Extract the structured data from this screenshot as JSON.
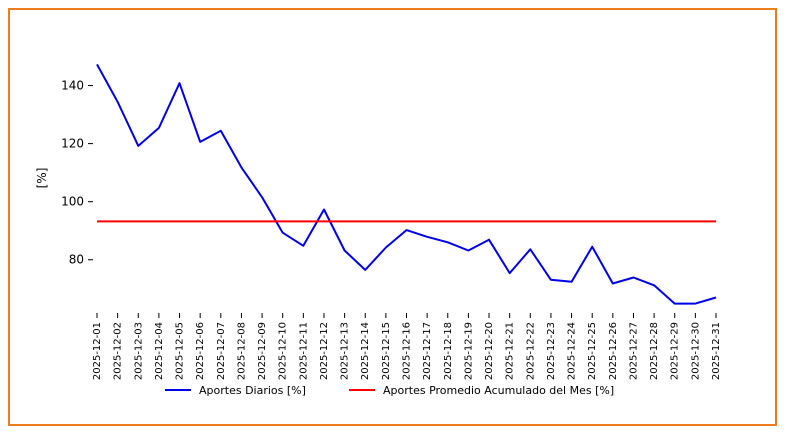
{
  "chart_data": {
    "type": "line",
    "title": "",
    "xlabel": "",
    "ylabel": "[%]",
    "ylim": [
      62,
      155
    ],
    "yticks": [
      80,
      100,
      120,
      140
    ],
    "grid": false,
    "legend_position": "bottom-center",
    "x": [
      "2025-12-01",
      "2025-12-02",
      "2025-12-03",
      "2025-12-04",
      "2025-12-05",
      "2025-12-06",
      "2025-12-07",
      "2025-12-08",
      "2025-12-09",
      "2025-12-10",
      "2025-12-11",
      "2025-12-12",
      "2025-12-13",
      "2025-12-14",
      "2025-12-15",
      "2025-12-16",
      "2025-12-17",
      "2025-12-18",
      "2025-12-19",
      "2025-12-20",
      "2025-12-21",
      "2025-12-22",
      "2025-12-23",
      "2025-12-24",
      "2025-12-25",
      "2025-12-26",
      "2025-12-27",
      "2025-12-28",
      "2025-12-29",
      "2025-12-30",
      "2025-12-31"
    ],
    "series": [
      {
        "name": "Aportes Diarios [%]",
        "color": "#0000ee",
        "values": [
          147.3,
          134.4,
          119.2,
          125.4,
          140.8,
          120.6,
          124.4,
          111.8,
          101.5,
          89.3,
          84.8,
          97.3,
          83.2,
          76.5,
          84.2,
          90.2,
          87.9,
          86.0,
          83.2,
          86.9,
          75.4,
          83.6,
          73.1,
          72.4,
          84.5,
          71.8,
          73.9,
          71.2,
          64.9,
          64.9,
          67.0
        ]
      },
      {
        "name": "Aportes Promedio Acumulado del Mes [%]",
        "color": "#ff0000",
        "values": [
          93.2,
          93.2,
          93.2,
          93.2,
          93.2,
          93.2,
          93.2,
          93.2,
          93.2,
          93.2,
          93.2,
          93.2,
          93.2,
          93.2,
          93.2,
          93.2,
          93.2,
          93.2,
          93.2,
          93.2,
          93.2,
          93.2,
          93.2,
          93.2,
          93.2,
          93.2,
          93.2,
          93.2,
          93.2,
          93.2,
          93.2
        ]
      }
    ]
  }
}
